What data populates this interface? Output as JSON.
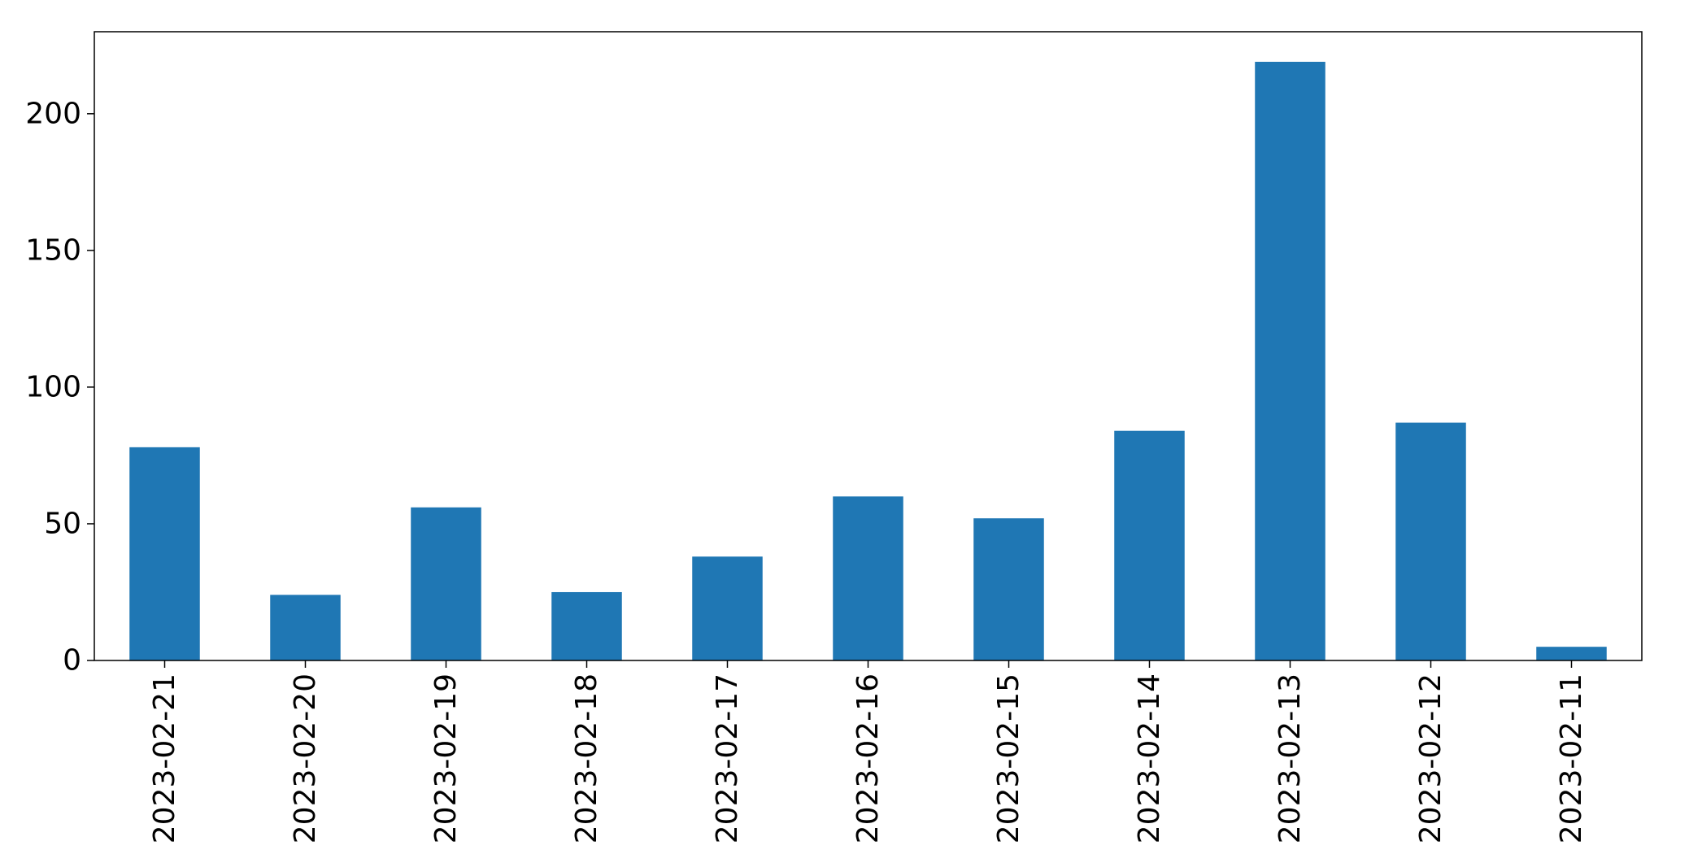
{
  "chart_data": {
    "type": "bar",
    "categories": [
      "2023-02-21",
      "2023-02-20",
      "2023-02-19",
      "2023-02-18",
      "2023-02-17",
      "2023-02-16",
      "2023-02-15",
      "2023-02-14",
      "2023-02-13",
      "2023-02-12",
      "2023-02-11"
    ],
    "values": [
      78,
      24,
      56,
      25,
      38,
      60,
      52,
      84,
      219,
      87,
      5
    ],
    "title": "",
    "xlabel": "",
    "ylabel": "",
    "ylim": [
      0,
      230
    ],
    "yticks": [
      0,
      50,
      100,
      150,
      200
    ],
    "grid": false,
    "legend": "none",
    "bar_color": "#1f77b4",
    "x_tick_rotation": "vertical"
  }
}
